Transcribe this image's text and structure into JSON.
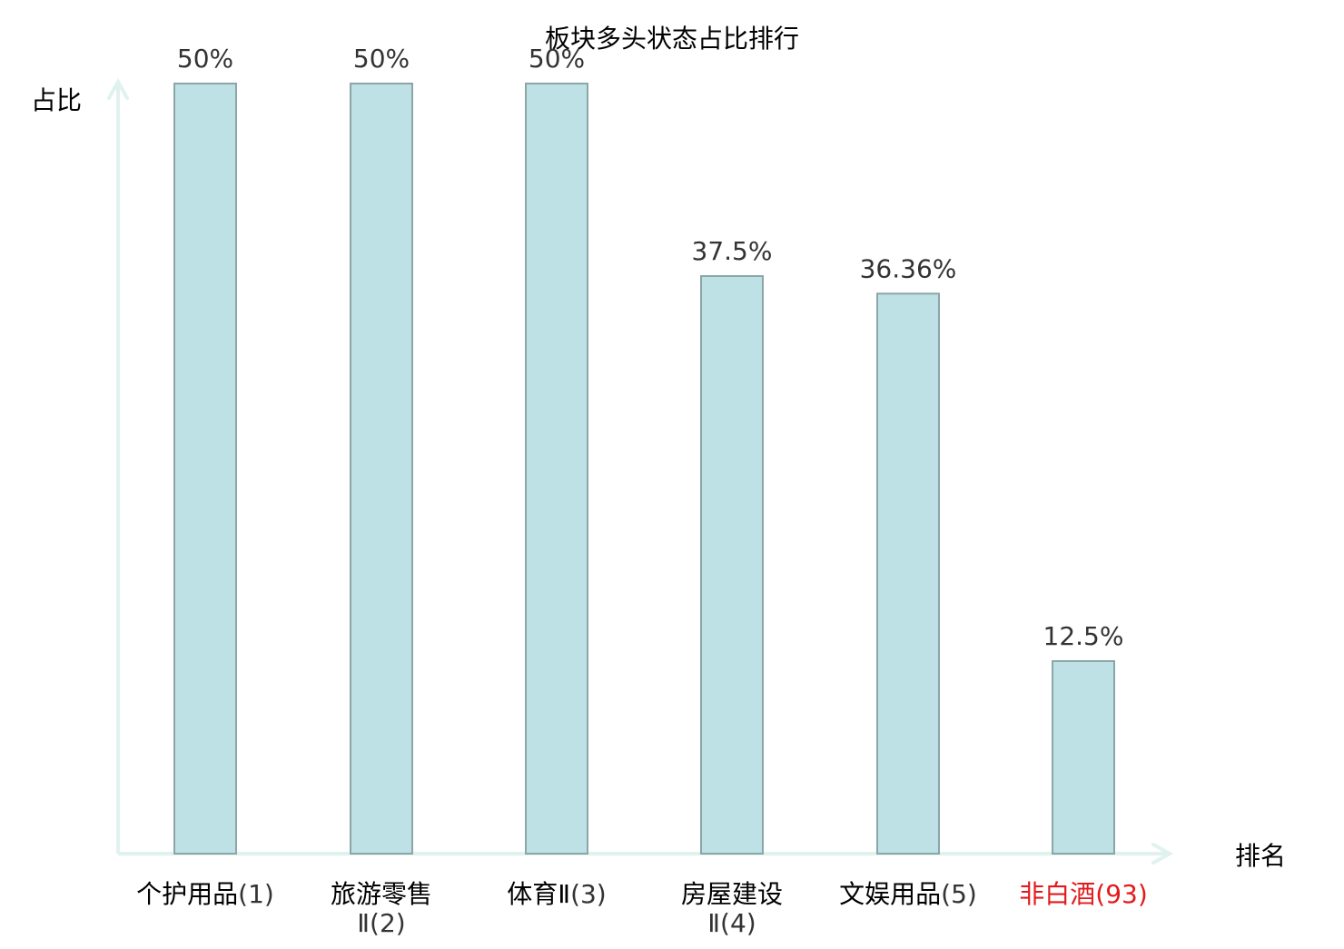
{
  "chart_data": {
    "type": "bar",
    "title": "板块多头状态占比排行",
    "xlabel": "排名",
    "ylabel": "占比",
    "categories": [
      {
        "name": "个护用品",
        "rank": "(1)",
        "highlight": false
      },
      {
        "name": "旅游零售",
        "name2": "Ⅱ",
        "rank": "(2)",
        "highlight": false
      },
      {
        "name": "体育Ⅱ",
        "rank": "(3)",
        "highlight": false
      },
      {
        "name": "房屋建设",
        "name2": "Ⅱ",
        "rank": "(4)",
        "highlight": false
      },
      {
        "name": "文娱用品",
        "rank": "(5)",
        "highlight": false
      },
      {
        "name": "非白酒",
        "rank": "(93)",
        "highlight": true
      }
    ],
    "values": [
      50,
      50,
      50,
      37.5,
      36.36,
      12.5
    ],
    "value_labels": [
      "50%",
      "50%",
      "50%",
      "37.5%",
      "36.36%",
      "12.5%"
    ],
    "ylim": [
      0,
      50
    ],
    "grid": false,
    "legend": "none"
  },
  "colors": {
    "bar_fill": "#bde1e4",
    "bar_stroke": "#8ba6a8",
    "axis": "#e0f2f0",
    "highlight": "#e31a1c",
    "label_text": "#000000",
    "rank_text": "#333333",
    "value_text": "#333333"
  }
}
